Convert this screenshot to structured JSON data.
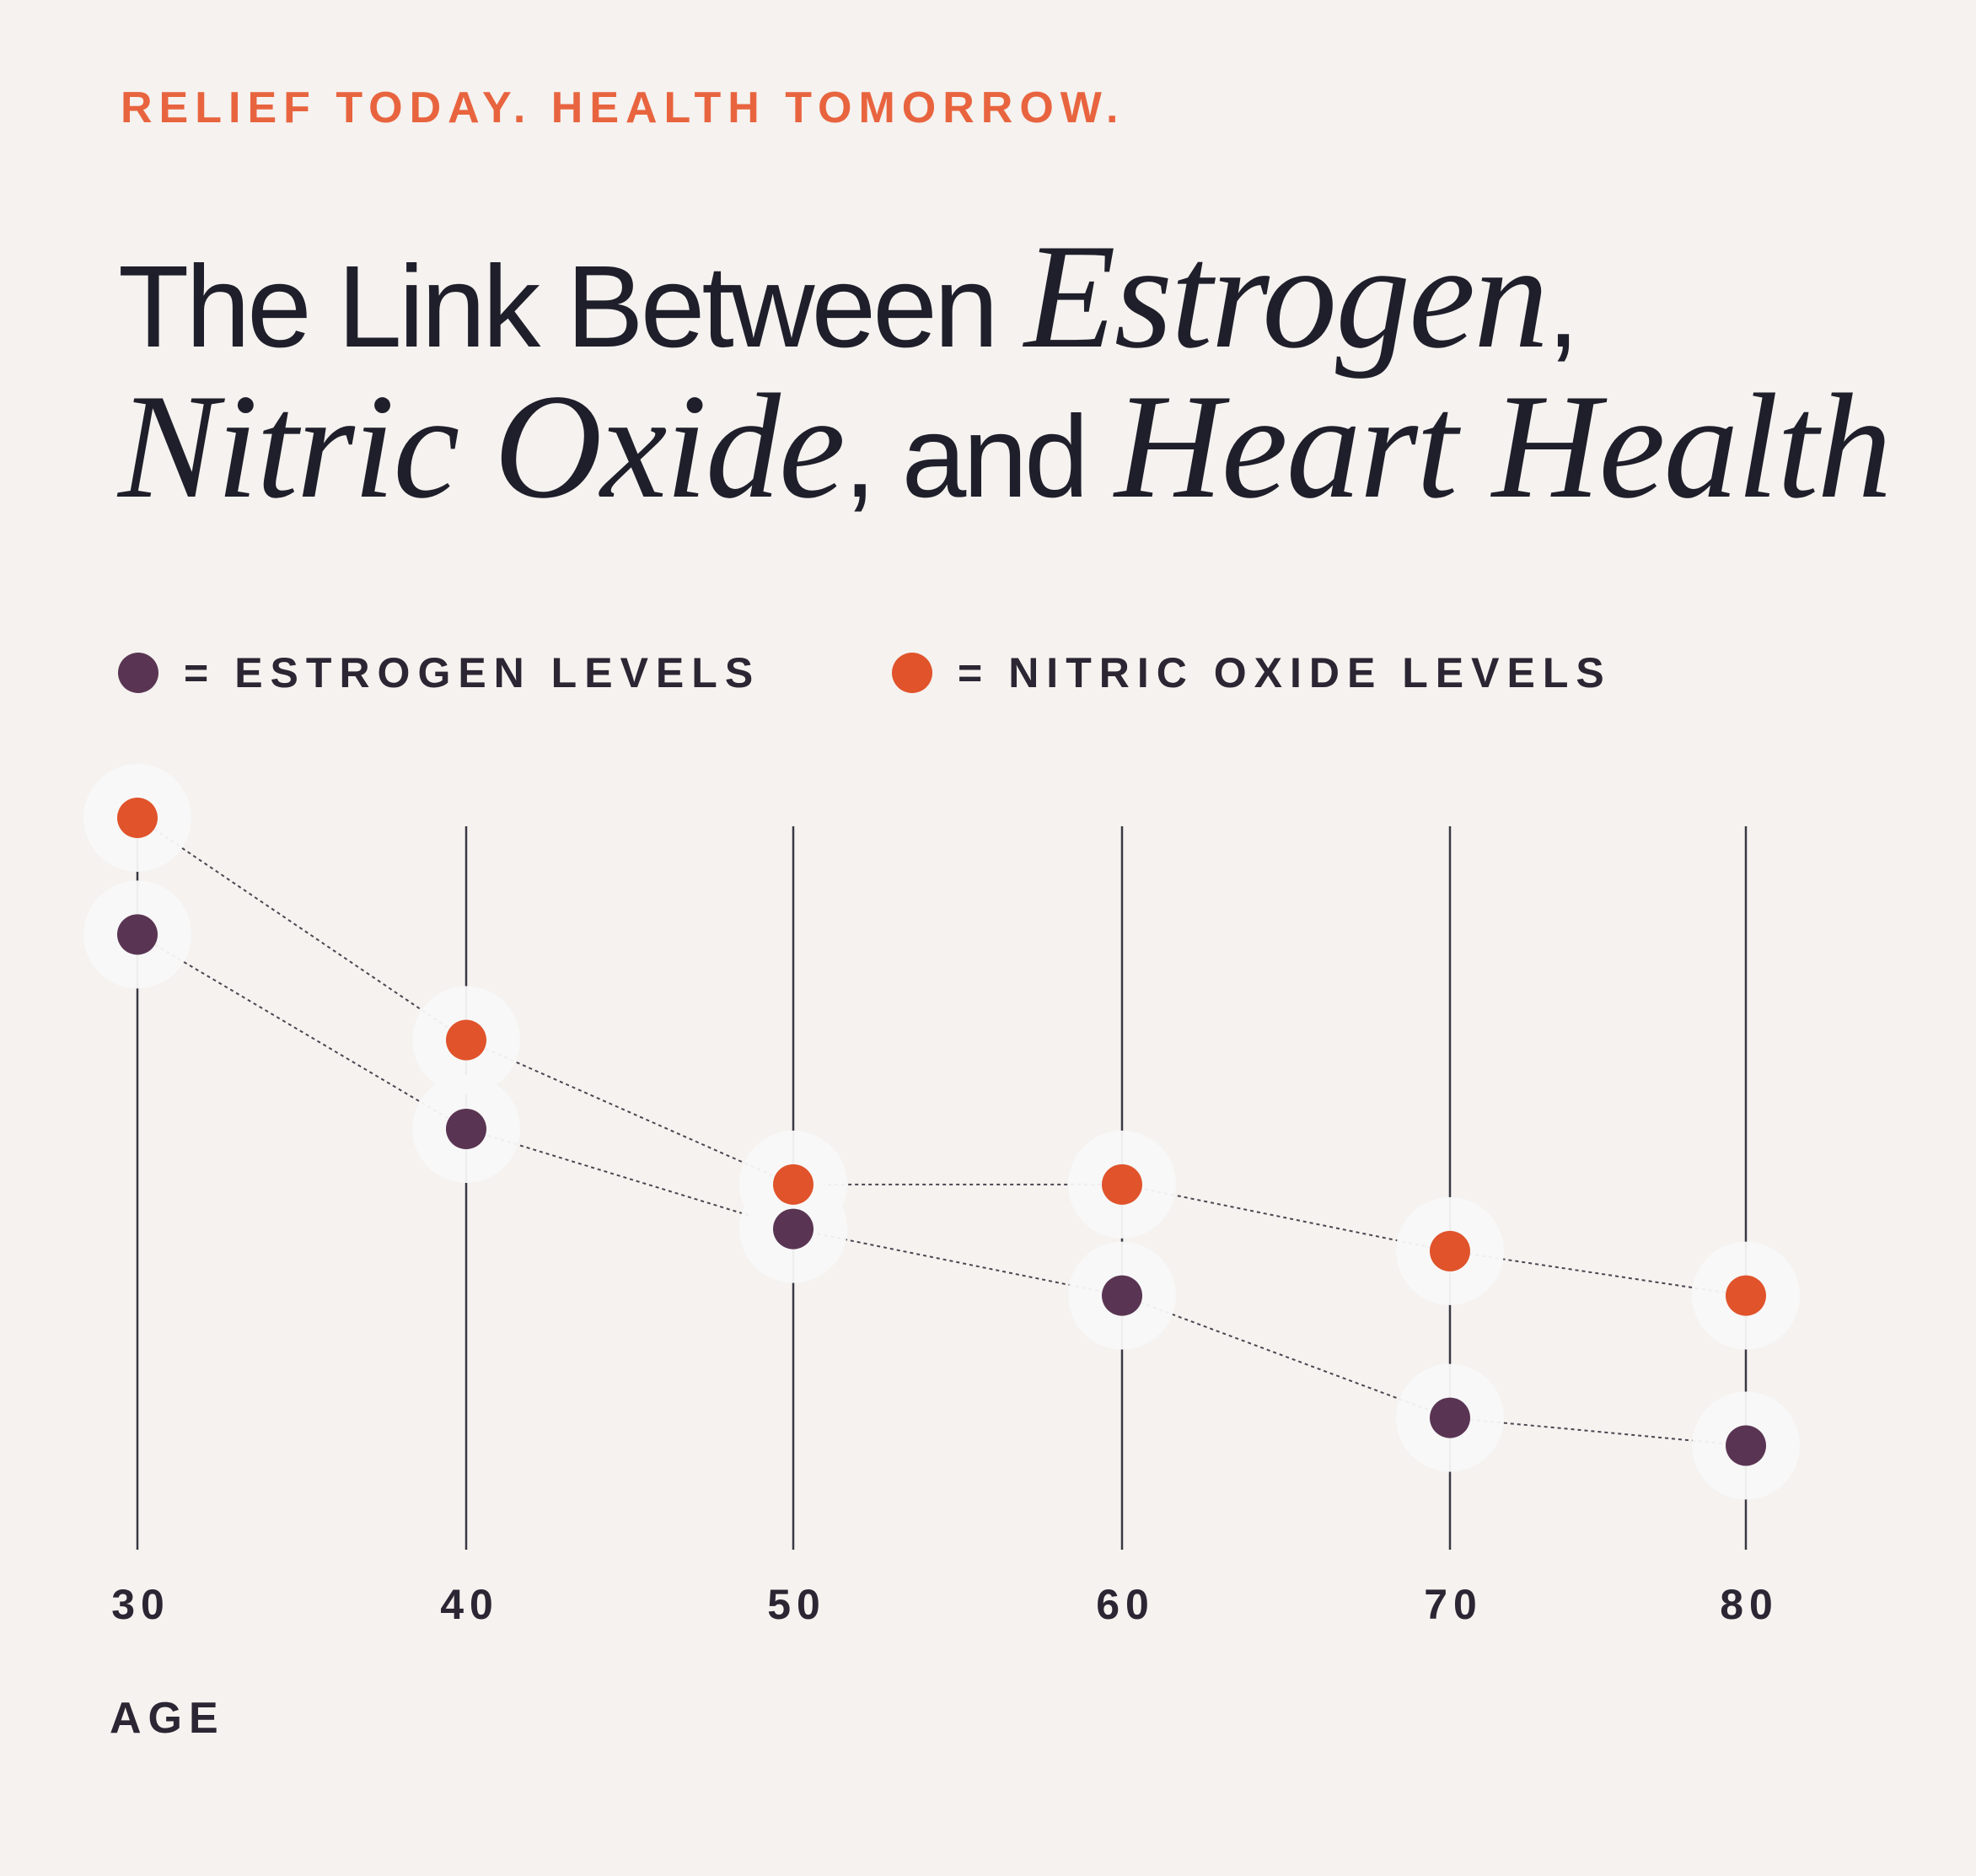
{
  "eyebrow": "RELIEF TODAY. HEALTH TOMORROW.",
  "headline": {
    "line1_sans": "The Link Between ",
    "line1_serif": "Estrogen",
    "line1_comma": ",",
    "line2_serif_a": "Nitric Oxide",
    "line2_comma": ",",
    "line2_sans": " and ",
    "line2_serif_b": "Heart Health"
  },
  "legend": {
    "equals": "=",
    "items": [
      {
        "label": "ESTROGEN LEVELS"
      },
      {
        "label": "NITRIC OXIDE LEVELS"
      }
    ]
  },
  "colors": {
    "background": "#f5f2ef",
    "accent": "#e8643f",
    "estrogen": "#5a3553",
    "nitric_oxide": "#e0532b",
    "text": "#1f1f2b",
    "halo": "#f8f8f8"
  },
  "chart_data": {
    "type": "line",
    "title": "The Link Between Estrogen, Nitric Oxide, and Heart Health",
    "xlabel": "AGE",
    "ylabel": "",
    "x": [
      30,
      40,
      50,
      60,
      70,
      80
    ],
    "tick_labels": [
      "30",
      "40",
      "50",
      "60",
      "70",
      "80"
    ],
    "series": [
      {
        "name": "NITRIC OXIDE LEVELS",
        "key": "nitric_oxide",
        "values": [
          100,
          80,
          67,
          67,
          61,
          57
        ]
      },
      {
        "name": "ESTROGEN LEVELS",
        "key": "estrogen",
        "values": [
          89.5,
          72,
          63,
          57,
          46,
          43.5
        ]
      }
    ],
    "ylim": [
      38,
      100
    ],
    "grid": "vertical lines at each age",
    "legend_position": "top-left"
  }
}
